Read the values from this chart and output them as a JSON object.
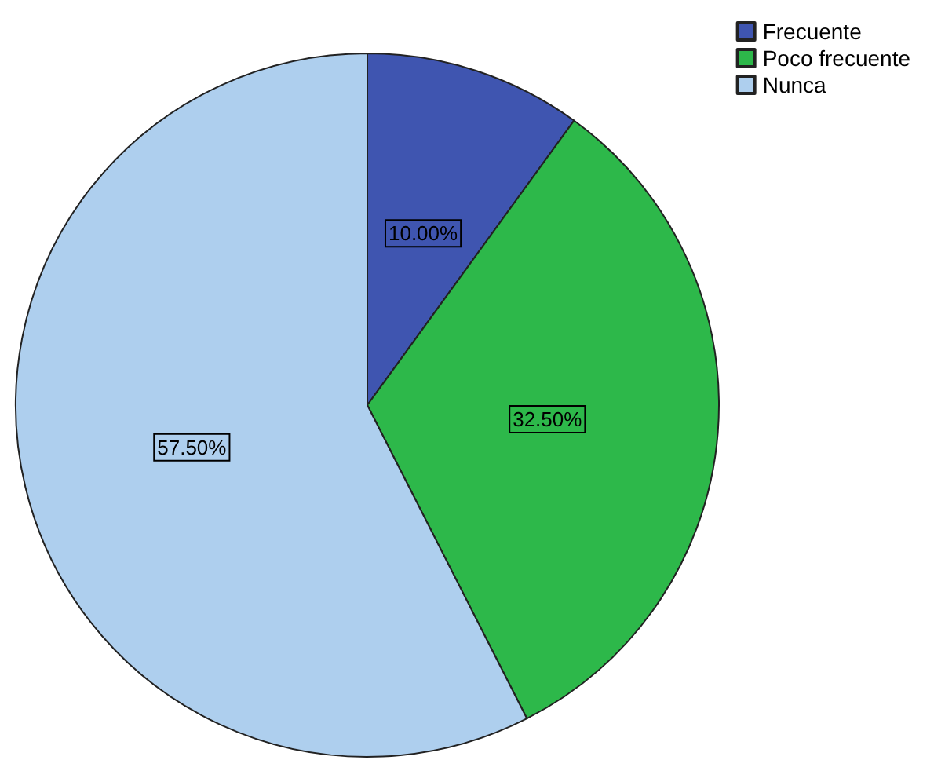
{
  "chart_data": {
    "type": "pie",
    "categories": [
      "Frecuente",
      "Poco frecuente",
      "Nunca"
    ],
    "values": [
      10,
      32.5,
      57.5
    ],
    "colors": [
      "#3f55b0",
      "#2db84a",
      "#aecfee"
    ],
    "value_labels": [
      "10.00%",
      "32.50%",
      "57.50%"
    ],
    "legend": "top right"
  }
}
